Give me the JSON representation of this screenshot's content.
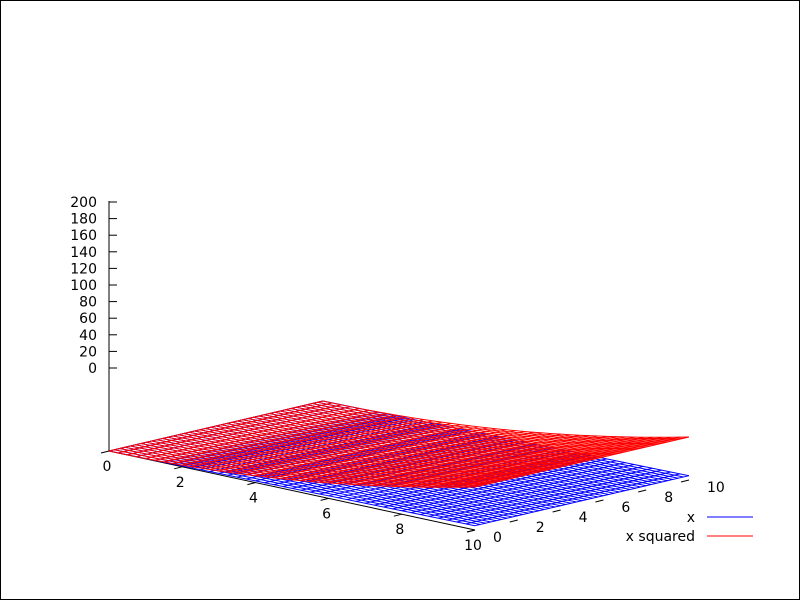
{
  "chart_data": {
    "type": "surface",
    "x": {
      "range": [
        0,
        10
      ],
      "ticks": [
        "0",
        "2",
        "4",
        "6",
        "8",
        "10"
      ]
    },
    "y": {
      "range": [
        0,
        10
      ],
      "ticks": [
        "0",
        "2",
        "4",
        "6",
        "8",
        "10"
      ]
    },
    "z": {
      "range": [
        0,
        200
      ],
      "ticks": [
        "0",
        "20",
        "40",
        "60",
        "80",
        "100",
        "120",
        "140",
        "160",
        "180",
        "200"
      ]
    },
    "grid_samples": 40,
    "legend_placement": "bottom-right",
    "series": [
      {
        "name": "x",
        "function": "z = x",
        "color": "#0000ff"
      },
      {
        "name": "x squared",
        "function": "z = x^2",
        "color": "#ff0000"
      }
    ]
  }
}
